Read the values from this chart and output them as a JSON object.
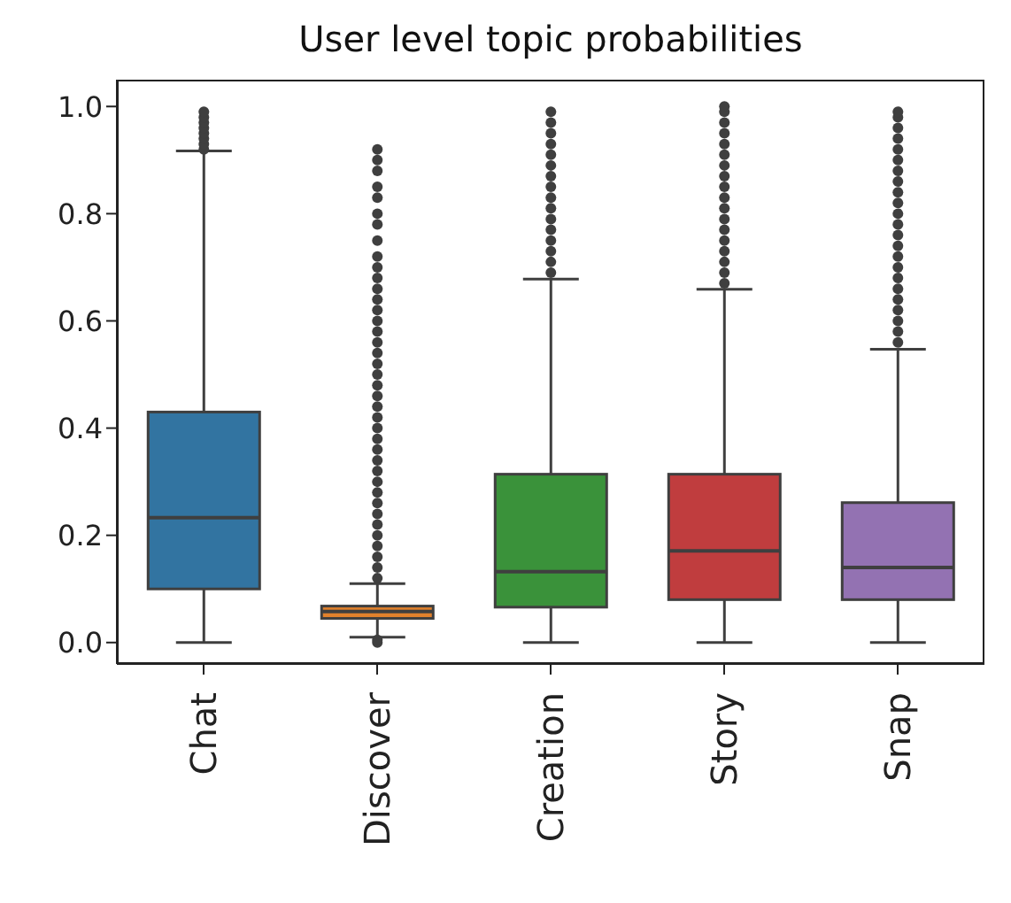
{
  "chart_data": {
    "type": "box",
    "title": "User level topic probabilities",
    "categories": [
      "Chat",
      "Discover",
      "Creation",
      "Story",
      "Snap"
    ],
    "colors": [
      "#3274a1",
      "#e1812c",
      "#3a923a",
      "#c03d3e",
      "#9372b2"
    ],
    "boxes": [
      {
        "low": 0,
        "q1": 0.1,
        "median": 0.233,
        "q3": 0.43,
        "high": 0.917,
        "outliers": [
          0.92,
          0.93,
          0.94,
          0.95,
          0.96,
          0.97,
          0.98,
          0.99
        ]
      },
      {
        "low": 0.01,
        "q1": 0.045,
        "median": 0.058,
        "q3": 0.068,
        "high": 0.11,
        "outliers": [
          0.0,
          0.005,
          0.12,
          0.14,
          0.16,
          0.18,
          0.2,
          0.22,
          0.24,
          0.26,
          0.28,
          0.3,
          0.32,
          0.34,
          0.36,
          0.38,
          0.4,
          0.42,
          0.44,
          0.46,
          0.48,
          0.5,
          0.52,
          0.54,
          0.56,
          0.58,
          0.6,
          0.62,
          0.64,
          0.66,
          0.68,
          0.7,
          0.72,
          0.75,
          0.78,
          0.8,
          0.83,
          0.85,
          0.88,
          0.9,
          0.92
        ]
      },
      {
        "low": 0,
        "q1": 0.066,
        "median": 0.132,
        "q3": 0.314,
        "high": 0.678,
        "outliers": [
          0.69,
          0.71,
          0.73,
          0.75,
          0.77,
          0.79,
          0.81,
          0.83,
          0.85,
          0.87,
          0.89,
          0.91,
          0.93,
          0.95,
          0.97,
          0.99
        ]
      },
      {
        "low": 0,
        "q1": 0.08,
        "median": 0.171,
        "q3": 0.314,
        "high": 0.659,
        "outliers": [
          0.67,
          0.69,
          0.71,
          0.73,
          0.75,
          0.77,
          0.79,
          0.81,
          0.83,
          0.85,
          0.87,
          0.89,
          0.91,
          0.93,
          0.95,
          0.97,
          0.99,
          1.0
        ]
      },
      {
        "low": 0,
        "q1": 0.08,
        "median": 0.14,
        "q3": 0.261,
        "high": 0.547,
        "outliers": [
          0.56,
          0.58,
          0.6,
          0.62,
          0.64,
          0.66,
          0.68,
          0.7,
          0.72,
          0.74,
          0.76,
          0.78,
          0.8,
          0.82,
          0.84,
          0.86,
          0.88,
          0.9,
          0.92,
          0.94,
          0.96,
          0.98,
          0.99
        ]
      }
    ],
    "ylim": [
      -0.04,
      1.05
    ],
    "yticks": [
      {
        "value": 0,
        "label": "0.0"
      },
      0.2,
      0.4,
      0.6,
      0.8,
      {
        "value": 1,
        "label": "1.0"
      }
    ],
    "grid": false,
    "legend": false
  }
}
